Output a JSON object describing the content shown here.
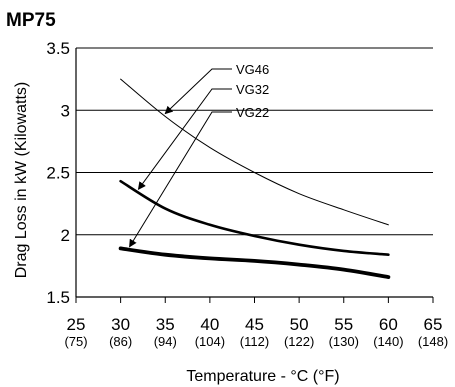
{
  "chart_data": {
    "type": "line",
    "title": "MP75",
    "xlabel": "Temperature - °C (°F)",
    "ylabel": "Drag Loss in kW (Kilowatts)",
    "xlim": [
      25,
      65
    ],
    "ylim": [
      1.5,
      3.5
    ],
    "grid": "horizontal",
    "x_ticks": [
      25,
      30,
      35,
      40,
      45,
      50,
      55,
      60,
      65
    ],
    "x_ticks_f": [
      "(75)",
      "(86)",
      "(94)",
      "(104)",
      "(112)",
      "(122)",
      "(130)",
      "(140)",
      "(148)"
    ],
    "y_ticks": [
      "1.5",
      "2",
      "2.5",
      "3",
      "3.5"
    ],
    "y_tick_values": [
      1.5,
      2,
      2.5,
      3,
      3.5
    ],
    "series": [
      {
        "name": "VG46",
        "x": [
          30,
          35,
          40,
          45,
          50,
          55,
          60
        ],
        "y": [
          3.25,
          2.95,
          2.7,
          2.5,
          2.33,
          2.2,
          2.08
        ]
      },
      {
        "name": "VG32",
        "x": [
          30,
          35,
          40,
          45,
          50,
          55,
          60
        ],
        "y": [
          2.43,
          2.21,
          2.08,
          1.99,
          1.92,
          1.87,
          1.84
        ]
      },
      {
        "name": "VG22",
        "x": [
          30,
          35,
          40,
          45,
          50,
          55,
          60
        ],
        "y": [
          1.89,
          1.84,
          1.81,
          1.79,
          1.76,
          1.72,
          1.66
        ]
      }
    ]
  }
}
